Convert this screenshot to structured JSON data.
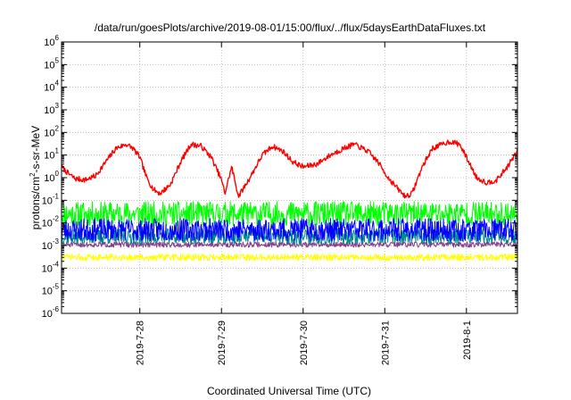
{
  "chart_data": {
    "type": "line",
    "title": "/data/run/goesPlots/archive/2019-08-01/15:00/flux/../flux/5daysEarthDataFluxes.txt",
    "xlabel": "Coordinated Universal Time (UTC)",
    "ylabel": {
      "pre": "protons/cm",
      "sup": "2",
      "post": "-s-sr-MeV"
    },
    "y_scale": "log",
    "ylim": [
      1e-06,
      1000000.0
    ],
    "y_ticks": [
      {
        "value": 1e-06,
        "base": "10",
        "exp": "-6"
      },
      {
        "value": 1e-05,
        "base": "10",
        "exp": "-5"
      },
      {
        "value": 0.0001,
        "base": "10",
        "exp": "-4"
      },
      {
        "value": 0.001,
        "base": "10",
        "exp": "-3"
      },
      {
        "value": 0.01,
        "base": "10",
        "exp": "-2"
      },
      {
        "value": 0.1,
        "base": "10",
        "exp": "-1"
      },
      {
        "value": 1,
        "base": "10",
        "exp": "0"
      },
      {
        "value": 10,
        "base": "10",
        "exp": "1"
      },
      {
        "value": 100,
        "base": "10",
        "exp": "2"
      },
      {
        "value": 1000,
        "base": "10",
        "exp": "3"
      },
      {
        "value": 10000,
        "base": "10",
        "exp": "4"
      },
      {
        "value": 100000,
        "base": "10",
        "exp": "5"
      },
      {
        "value": 1000000,
        "base": "10",
        "exp": "6"
      }
    ],
    "xlim": [
      "2019-07-27T01:00",
      "2019-08-01T15:00"
    ],
    "x_ticks": [
      {
        "value": "2019-07-28T00:00",
        "label": "2019-7-28"
      },
      {
        "value": "2019-07-29T00:00",
        "label": "2019-7-29"
      },
      {
        "value": "2019-07-30T00:00",
        "label": "2019-7-30"
      },
      {
        "value": "2019-07-31T00:00",
        "label": "2019-7-31"
      },
      {
        "value": "2019-08-01T00:00",
        "label": "2019-8-1"
      }
    ],
    "grid": true,
    "legend": "none",
    "series": [
      {
        "color": "#ff0000",
        "noise": 0.12,
        "x": [
          "2019-07-27T01:00",
          "2019-07-27T03:00",
          "2019-07-27T05:00",
          "2019-07-27T08:00",
          "2019-07-27T11:00",
          "2019-07-27T14:00",
          "2019-07-27T17:00",
          "2019-07-27T20:00",
          "2019-07-27T22:00",
          "2019-07-28T00:00",
          "2019-07-28T02:00",
          "2019-07-28T04:00",
          "2019-07-28T06:00",
          "2019-07-28T09:00",
          "2019-07-28T12:00",
          "2019-07-28T15:00",
          "2019-07-28T18:00",
          "2019-07-28T21:00",
          "2019-07-29T00:00",
          "2019-07-29T01:00",
          "2019-07-29T03:00",
          "2019-07-29T05:00",
          "2019-07-29T08:00",
          "2019-07-29T12:00",
          "2019-07-29T15:00",
          "2019-07-29T18:00",
          "2019-07-29T21:00",
          "2019-07-30T00:00",
          "2019-07-30T04:00",
          "2019-07-30T08:00",
          "2019-07-30T12:00",
          "2019-07-30T15:00",
          "2019-07-30T19:00",
          "2019-07-30T22:00",
          "2019-07-31T01:00",
          "2019-07-31T04:00",
          "2019-07-31T06:00",
          "2019-07-31T08:00",
          "2019-07-31T11:00",
          "2019-07-31T14:00",
          "2019-07-31T17:00",
          "2019-07-31T19:00",
          "2019-07-31T22:00",
          "2019-08-01T00:00",
          "2019-08-01T03:00",
          "2019-08-01T06:00",
          "2019-08-01T09:00",
          "2019-08-01T12:00",
          "2019-08-01T15:00"
        ],
        "values": [
          3,
          1.5,
          0.9,
          0.8,
          1.2,
          5,
          20,
          30,
          20,
          8,
          1,
          0.3,
          0.2,
          0.5,
          5,
          30,
          25,
          8,
          0.8,
          0.2,
          3,
          0.15,
          0.8,
          10,
          25,
          15,
          5,
          3,
          4,
          10,
          20,
          30,
          15,
          5,
          1,
          0.3,
          0.15,
          0.2,
          3,
          20,
          30,
          40,
          30,
          8,
          1,
          0.6,
          0.8,
          3,
          15
        ]
      },
      {
        "color": "#00ff00",
        "base": 0.025,
        "spread": 0.55,
        "seed": 11
      },
      {
        "color": "#0000ff",
        "base": 0.005,
        "spread": 0.5,
        "seed": 23
      },
      {
        "color": "#008b8b",
        "base": 0.0025,
        "spread": 0.35,
        "seed": 37
      },
      {
        "color": "#8b3a8b",
        "base": 0.0011,
        "spread": 0.12,
        "seed": 51
      },
      {
        "color": "#ffff00",
        "base": 0.0003,
        "spread": 0.15,
        "seed": 73
      }
    ]
  }
}
